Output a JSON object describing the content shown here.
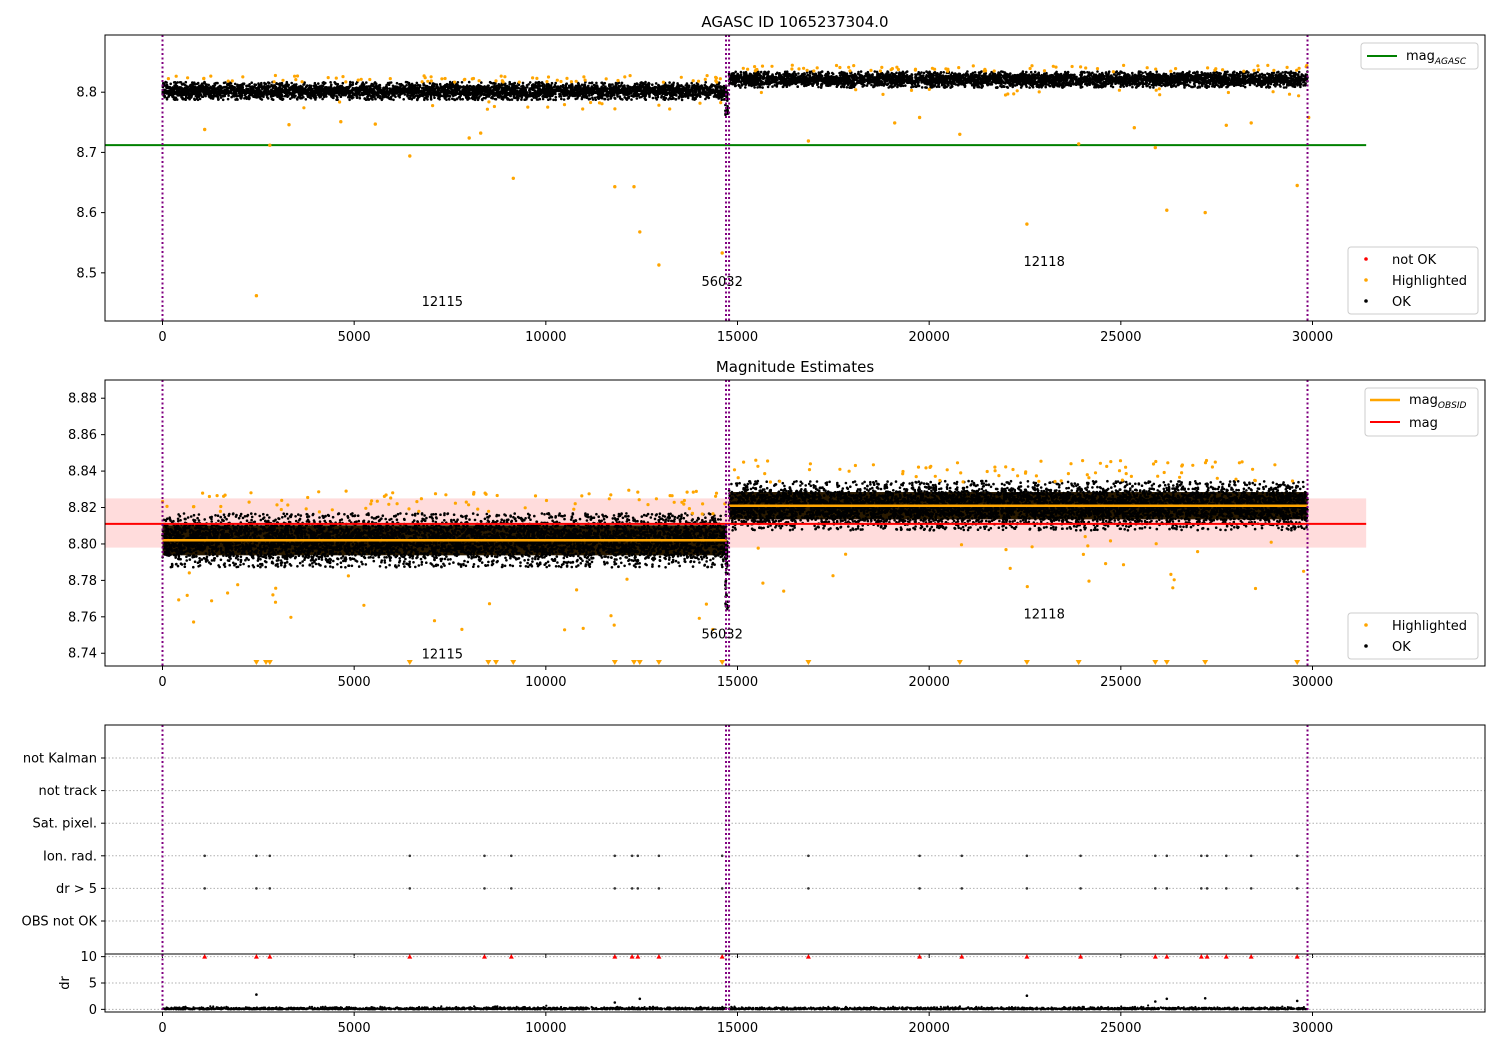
{
  "chart_data": [
    {
      "type": "scatter",
      "title": "AGASC ID 1065237304.0",
      "xlim": [
        -1500,
        34500
      ],
      "ylim": [
        8.42,
        8.895
      ],
      "xticks": [
        0,
        5000,
        10000,
        15000,
        20000,
        25000,
        30000
      ],
      "yticks": [
        8.5,
        8.6,
        8.7,
        8.8
      ],
      "ytick_labels": [
        "8.5",
        "8.6",
        "8.7",
        "8.8"
      ],
      "vlines": [
        0,
        14700,
        14780,
        29870
      ],
      "hline": {
        "name": "mag",
        "sub": "AGASC",
        "value": 8.712,
        "x_range": [
          -1500,
          31400
        ],
        "color": "#008000"
      },
      "segments": [
        {
          "x_range": [
            0,
            14720
          ],
          "center": 8.802,
          "spread": 0.011
        },
        {
          "x_range": [
            14780,
            29870
          ],
          "center": 8.821,
          "spread": 0.01
        }
      ],
      "dip": {
        "x": 14720,
        "y": 8.76
      },
      "obsid_labels": [
        {
          "text": "12115",
          "x": 7300,
          "y": 8.445
        },
        {
          "text": "56032",
          "x": 14600,
          "y": 8.478
        },
        {
          "text": "12118",
          "x": 23000,
          "y": 8.511
        }
      ],
      "highlighted_outliers": [
        [
          2450,
          8.462
        ],
        [
          6450,
          8.694
        ],
        [
          2800,
          8.712
        ],
        [
          8000,
          8.724
        ],
        [
          8300,
          8.732
        ],
        [
          9150,
          8.657
        ],
        [
          11800,
          8.643
        ],
        [
          12300,
          8.643
        ],
        [
          12450,
          8.568
        ],
        [
          12950,
          8.513
        ],
        [
          14600,
          8.533
        ],
        [
          1100,
          8.738
        ],
        [
          3300,
          8.746
        ],
        [
          4650,
          8.751
        ],
        [
          5550,
          8.747
        ],
        [
          16850,
          8.719
        ],
        [
          19100,
          8.749
        ],
        [
          19750,
          8.758
        ],
        [
          20800,
          8.73
        ],
        [
          22550,
          8.581
        ],
        [
          23900,
          8.714
        ],
        [
          25350,
          8.741
        ],
        [
          25900,
          8.708
        ],
        [
          26200,
          8.604
        ],
        [
          27200,
          8.6
        ],
        [
          27750,
          8.745
        ],
        [
          28400,
          8.749
        ],
        [
          29600,
          8.645
        ],
        [
          29900,
          8.758
        ]
      ],
      "legend": {
        "placement": "lower-right",
        "entries": [
          "not OK",
          "Highlighted",
          "OK"
        ]
      },
      "colors": {
        "ok": "#000000",
        "highlighted": "#ffa500",
        "not_ok": "#ff0000",
        "vline": "#800080"
      }
    },
    {
      "type": "scatter",
      "title": "Magnitude Estimates",
      "xlim": [
        -1500,
        34500
      ],
      "ylim": [
        8.733,
        8.89
      ],
      "xticks": [
        0,
        5000,
        10000,
        15000,
        20000,
        25000,
        30000
      ],
      "yticks": [
        8.74,
        8.76,
        8.78,
        8.8,
        8.82,
        8.84,
        8.86,
        8.88
      ],
      "ytick_labels": [
        "8.74",
        "8.76",
        "8.78",
        "8.80",
        "8.82",
        "8.84",
        "8.86",
        "8.88"
      ],
      "vlines": [
        0,
        14700,
        14780,
        29870
      ],
      "mag": {
        "name": "mag",
        "value": 8.811,
        "band": [
          8.798,
          8.825
        ],
        "x_range": [
          -1500,
          31400
        ],
        "color": "#ff0000"
      },
      "mag_obsid": {
        "name": "mag",
        "sub": "OBSID",
        "segments": [
          {
            "x_range": [
              0,
              14720
            ],
            "value": 8.802
          },
          {
            "x_range": [
              14780,
              29870
            ],
            "value": 8.821
          }
        ],
        "color": "#ffa500"
      },
      "segments": [
        {
          "x_range": [
            0,
            14720
          ],
          "center": 8.802,
          "spread": 0.011
        },
        {
          "x_range": [
            14780,
            29870
          ],
          "center": 8.821,
          "spread": 0.01
        }
      ],
      "obsid_labels": [
        {
          "text": "12115",
          "x": 7300,
          "y": 8.737
        },
        {
          "text": "56032",
          "x": 14600,
          "y": 8.748
        },
        {
          "text": "12118",
          "x": 23000,
          "y": 8.759
        }
      ],
      "clipped_markers_x": [
        2450,
        2700,
        2800,
        6450,
        8500,
        8700,
        9150,
        11800,
        12300,
        12450,
        12950,
        14600,
        16850,
        20800,
        22550,
        23900,
        25900,
        26200,
        27200,
        29600
      ],
      "legend": {
        "placement": "lower-right",
        "entries": [
          "Highlighted",
          "OK"
        ]
      }
    },
    {
      "type": "scatter",
      "title": "",
      "xlim": [
        -1500,
        34500
      ],
      "xticks": [
        0,
        5000,
        10000,
        15000,
        20000,
        25000,
        30000
      ],
      "vlines": [
        0,
        14700,
        14780,
        29870
      ],
      "flag_labels": [
        "not Kalman",
        "not track",
        "Sat. pixel.",
        "Ion. rad.",
        "dr > 5",
        "OBS not OK"
      ],
      "flag_points": {
        "Ion. rad.": [
          1100,
          2450,
          2800,
          6450,
          8400,
          9100,
          11800,
          12250,
          12400,
          12950,
          14600,
          16850,
          19750,
          20850,
          22550,
          23950,
          25900,
          26200,
          27100,
          27250,
          27750,
          28400,
          29600
        ],
        "dr > 5": [
          1100,
          2450,
          2800,
          6450,
          8400,
          9100,
          11800,
          12250,
          12400,
          12950,
          14600,
          16850,
          19750,
          20850,
          22550,
          23950,
          25900,
          26200,
          27100,
          27250,
          27750,
          28400,
          29600
        ]
      },
      "dr": {
        "ylabel": "dr",
        "yticks": [
          0,
          5,
          10
        ],
        "ylim": [
          -0.5,
          10.5
        ],
        "clipped_markers_x": [
          1100,
          2450,
          2800,
          6450,
          8400,
          9100,
          11800,
          12250,
          12400,
          12950,
          14600,
          16850,
          19750,
          20850,
          22550,
          23950,
          25900,
          26200,
          27100,
          27250,
          27750,
          28400,
          29600
        ],
        "outliers": [
          [
            2450,
            2.8
          ],
          [
            11800,
            1.3
          ],
          [
            12450,
            2.0
          ],
          [
            22550,
            2.6
          ],
          [
            25900,
            1.5
          ],
          [
            26200,
            2.0
          ],
          [
            27200,
            2.1
          ],
          [
            29600,
            1.6
          ]
        ]
      }
    }
  ]
}
